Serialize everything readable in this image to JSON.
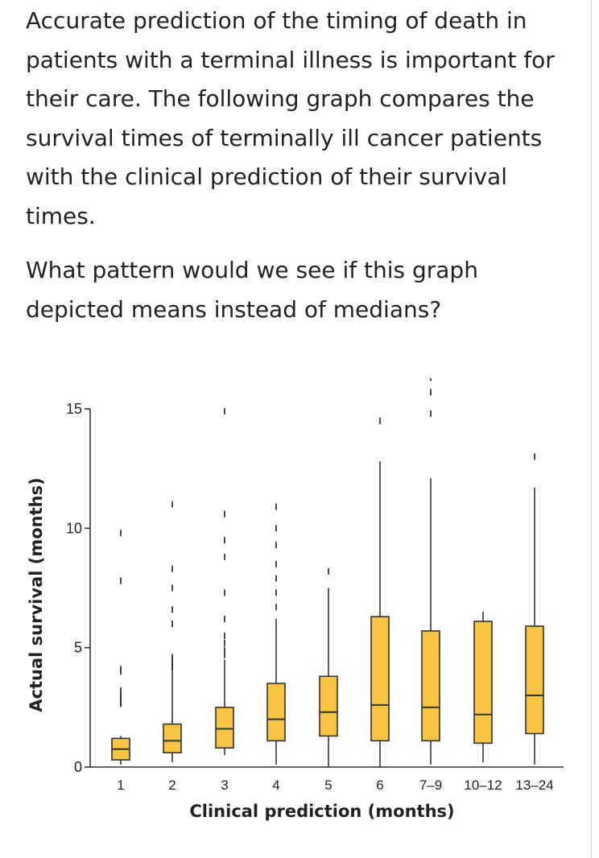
{
  "question": {
    "paragraph1": "Accurate prediction of the timing of death in patients with a terminal illness is important for their care. The following graph compares the survival times of terminally ill cancer patients with the clinical prediction of their survival times.",
    "paragraph2": "What pattern would we see if this graph depicted means instead of medians?"
  },
  "chart_data": {
    "type": "box",
    "xlabel": "Clinical prediction (months)",
    "ylabel": "Actual survival (months)",
    "ylim": [
      0,
      15
    ],
    "yticks": [
      0,
      5,
      10,
      15
    ],
    "colors": {
      "box_fill": "#f7c444",
      "stroke": "#333333"
    },
    "categories": [
      "1",
      "2",
      "3",
      "4",
      "5",
      "6",
      "7–9",
      "10–12",
      "13–24"
    ],
    "boxes": [
      {
        "category": "1",
        "low": 0.1,
        "q1": 0.3,
        "median": 0.75,
        "q3": 1.2,
        "high": 1.3,
        "outliers": [
          3.2,
          3.05,
          2.9,
          2.8,
          2.75,
          2.7,
          2.65,
          4.0,
          4.1,
          7.8,
          9.8
        ]
      },
      {
        "category": "2",
        "low": 0.2,
        "q1": 0.6,
        "median": 1.1,
        "q3": 1.8,
        "high": 4.0,
        "outliers": [
          4.3,
          4.45,
          4.6,
          6.0,
          6.6,
          7.5,
          8.3,
          11.0,
          4.15,
          4.2,
          4.25
        ]
      },
      {
        "category": "3",
        "low": 0.5,
        "q1": 0.8,
        "median": 1.6,
        "q3": 2.5,
        "high": 4.5,
        "outliers": [
          4.7,
          4.9,
          5.2,
          5.5,
          6.2,
          7.3,
          8.8,
          9.5,
          10.6,
          14.9
        ]
      },
      {
        "category": "4",
        "low": 0.1,
        "q1": 1.1,
        "median": 2.0,
        "q3": 3.5,
        "high": 6.2,
        "outliers": [
          6.7,
          7.3,
          7.9,
          8.5,
          9.3,
          10.0,
          10.9
        ]
      },
      {
        "category": "5",
        "low": 0.0,
        "q1": 1.3,
        "median": 2.3,
        "q3": 3.8,
        "high": 7.5,
        "outliers": [
          8.2
        ]
      },
      {
        "category": "6",
        "low": 0.0,
        "q1": 1.1,
        "median": 2.6,
        "q3": 6.3,
        "high": 12.8,
        "outliers": [
          14.5
        ]
      },
      {
        "category": "7–9",
        "low": 0.1,
        "q1": 1.1,
        "median": 2.5,
        "q3": 5.7,
        "high": 12.1,
        "outliers": [
          14.8,
          15.7,
          16.3
        ]
      },
      {
        "category": "10–12",
        "low": 0.2,
        "q1": 1.0,
        "median": 2.2,
        "q3": 6.1,
        "high": 6.5,
        "outliers": []
      },
      {
        "category": "13–24",
        "low": 0.1,
        "q1": 1.4,
        "median": 3.0,
        "q3": 5.9,
        "high": 11.7,
        "outliers": [
          13.0
        ]
      }
    ]
  }
}
